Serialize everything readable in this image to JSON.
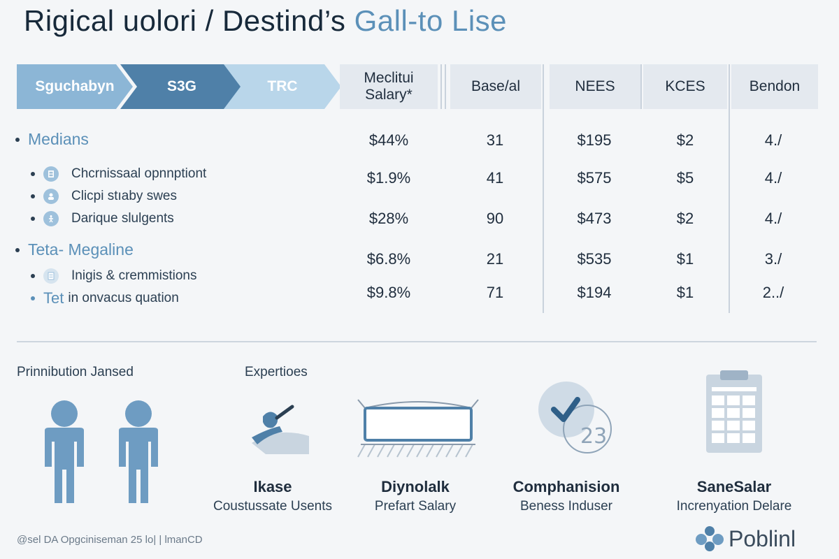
{
  "title": {
    "main": "Rigical uolori / Destind’s",
    "accent": "Gall-to Lise"
  },
  "steps": [
    "Sguchabyn",
    "S3G",
    "TRC"
  ],
  "table": {
    "headers": [
      "Meclitui Salary*",
      "Base/al",
      "NEES",
      "KCES",
      "Bendon"
    ],
    "rows": [
      [
        "$44%",
        "31",
        "$195",
        "$2",
        "4./"
      ],
      [
        "$1.9%",
        "41",
        "$575",
        "$5",
        "4./"
      ],
      [
        "$28%",
        "90",
        "$473",
        "$2",
        "4./"
      ],
      [
        "$6.8%",
        "21",
        "$535",
        "$1",
        "3./"
      ],
      [
        "$9.8%",
        "71",
        "$194",
        "$1",
        "2../"
      ]
    ]
  },
  "left_list": {
    "group1": "Medians",
    "items1": [
      "Chcrnissaal opnnptiont",
      "Clicpi stıaby swes",
      "Darique slulgents"
    ],
    "group2": "Teta- Megaline",
    "items2": [
      "Inigis & cremmistions"
    ],
    "tet_prefix": "Tet",
    "tet_text": "in onvacus quation"
  },
  "sections": {
    "left": "Prinnibution Jansed",
    "right": "Expertioes"
  },
  "cards": [
    {
      "title": "Ikase",
      "subtitle": "Coustussate Usents",
      "icon": "arm-icon"
    },
    {
      "title": "Diynolalk",
      "subtitle": "Prefart Salary",
      "icon": "banner-icon"
    },
    {
      "title": "Comphanision",
      "subtitle": "Beness Induser",
      "icon": "checkmark-icon"
    },
    {
      "title": "SaneSalar",
      "subtitle": "Increnyation Delare",
      "icon": "clipboard-icon"
    }
  ],
  "footer": "@sel DA Opgcinisemаn 25 lo| | lmanCD",
  "brand": "Poblinl",
  "colors": {
    "accent": "#5b90b8",
    "dark": "#4f80a8",
    "light": "#b9d6ea",
    "header_bg": "#e4e9ef"
  }
}
